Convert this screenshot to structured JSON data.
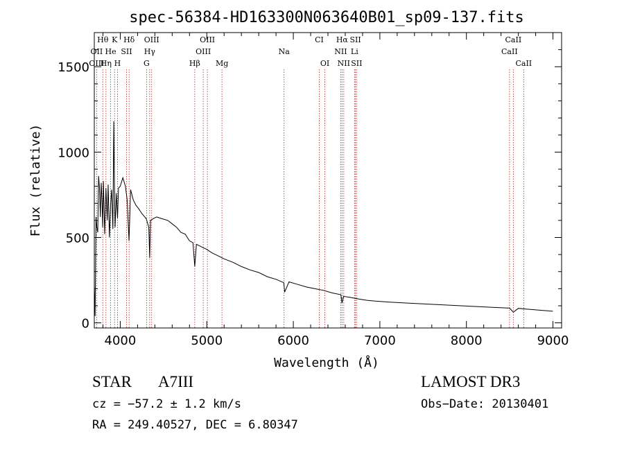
{
  "chart_data": {
    "type": "line",
    "title": "spec-56384-HD163300N063640B01_sp09-137.fits",
    "xlabel": "Wavelength (Å)",
    "ylabel": "Flux (relative)",
    "xlim": [
      3700,
      9100
    ],
    "ylim": [
      -30,
      1700
    ],
    "x_ticks": [
      4000,
      5000,
      6000,
      7000,
      8000,
      9000
    ],
    "x_tick_labels": [
      "4000",
      "5000",
      "6000",
      "7000",
      "8000",
      "9000"
    ],
    "y_ticks": [
      0,
      500,
      1000,
      1500
    ],
    "y_tick_labels": [
      "0",
      "500",
      "1000",
      "1500"
    ],
    "series": [
      {
        "name": "flux",
        "x": [
          3700,
          3705,
          3710,
          3715,
          3720,
          3730,
          3740,
          3750,
          3760,
          3770,
          3780,
          3790,
          3797,
          3805,
          3820,
          3835,
          3850,
          3860,
          3875,
          3889,
          3900,
          3915,
          3925,
          3933,
          3940,
          3955,
          3968,
          3980,
          4000,
          4030,
          4060,
          4080,
          4101,
          4120,
          4150,
          4180,
          4210,
          4250,
          4300,
          4330,
          4340,
          4350,
          4380,
          4420,
          4480,
          4550,
          4600,
          4650,
          4700,
          4750,
          4800,
          4840,
          4861,
          4880,
          4920,
          4960,
          5000,
          5060,
          5120,
          5200,
          5300,
          5400,
          5500,
          5600,
          5700,
          5800,
          5890,
          5900,
          5950,
          6050,
          6150,
          6250,
          6350,
          6450,
          6550,
          6563,
          6580,
          6650,
          6750,
          6850,
          6950,
          7100,
          7300,
          7500,
          7700,
          7900,
          8100,
          8300,
          8500,
          8542,
          8600,
          8700,
          8800,
          8900,
          9000
        ],
        "y": [
          220,
          130,
          40,
          390,
          620,
          560,
          530,
          860,
          790,
          620,
          820,
          700,
          560,
          830,
          520,
          790,
          600,
          810,
          500,
          700,
          780,
          550,
          1180,
          800,
          560,
          760,
          610,
          790,
          800,
          850,
          800,
          720,
          480,
          780,
          720,
          690,
          670,
          640,
          610,
          560,
          380,
          600,
          610,
          620,
          610,
          600,
          580,
          560,
          530,
          520,
          480,
          470,
          330,
          460,
          450,
          440,
          430,
          410,
          395,
          375,
          355,
          330,
          310,
          295,
          270,
          255,
          235,
          180,
          240,
          225,
          210,
          200,
          190,
          175,
          165,
          115,
          155,
          150,
          140,
          132,
          127,
          122,
          116,
          111,
          106,
          101,
          96,
          91,
          86,
          62,
          85,
          80,
          76,
          72,
          68
        ]
      }
    ],
    "lines": [
      {
        "name": "Hθ",
        "wavelength": 3798,
        "row": 0
      },
      {
        "name": "K",
        "wavelength": 3934,
        "row": 0
      },
      {
        "name": "Hδ",
        "wavelength": 4102,
        "row": 0
      },
      {
        "name": "OIII",
        "wavelength": 4363,
        "row": 0
      },
      {
        "name": "OIII",
        "wavelength": 5007,
        "row": 0
      },
      {
        "name": "CI",
        "wavelength": 6300,
        "row": 0
      },
      {
        "name": "Hα",
        "wavelength": 6563,
        "row": 0
      },
      {
        "name": "SII",
        "wavelength": 6717,
        "row": 0
      },
      {
        "name": "CaII",
        "wavelength": 8542,
        "row": 0
      },
      {
        "name": "OII",
        "wavelength": 3727,
        "row": 1
      },
      {
        "name": "He",
        "wavelength": 3889,
        "row": 1
      },
      {
        "name": "SII",
        "wavelength": 4072,
        "row": 1
      },
      {
        "name": "Hγ",
        "wavelength": 4340,
        "row": 1
      },
      {
        "name": "OIII",
        "wavelength": 4959,
        "row": 1
      },
      {
        "name": "Na",
        "wavelength": 5893,
        "row": 1
      },
      {
        "name": "NII",
        "wavelength": 6548,
        "row": 1
      },
      {
        "name": "Li",
        "wavelength": 6707,
        "row": 1
      },
      {
        "name": "CaII",
        "wavelength": 8498,
        "row": 1
      },
      {
        "name": "OIII",
        "wavelength": 3727,
        "row": 2
      },
      {
        "name": "Hη",
        "wavelength": 3835,
        "row": 2
      },
      {
        "name": "H",
        "wavelength": 3968,
        "row": 2
      },
      {
        "name": "G",
        "wavelength": 4304,
        "row": 2
      },
      {
        "name": "Hβ",
        "wavelength": 4861,
        "row": 2
      },
      {
        "name": "Mg",
        "wavelength": 5175,
        "row": 2
      },
      {
        "name": "OI",
        "wavelength": 6364,
        "row": 2
      },
      {
        "name": "NII",
        "wavelength": 6583,
        "row": 2
      },
      {
        "name": "SII",
        "wavelength": 6731,
        "row": 2
      },
      {
        "name": "CaII",
        "wavelength": 8662,
        "row": 2
      }
    ],
    "grid": false,
    "legend": "none"
  },
  "info": {
    "object_type": "STAR",
    "spectral_class": "A7III",
    "survey": "LAMOST DR3",
    "cz": "cz = −57.2 ± 1.2 km/s",
    "obs_date": "Obs−Date: 20130401",
    "radec": "RA = 249.40527, DEC =   6.80347"
  }
}
